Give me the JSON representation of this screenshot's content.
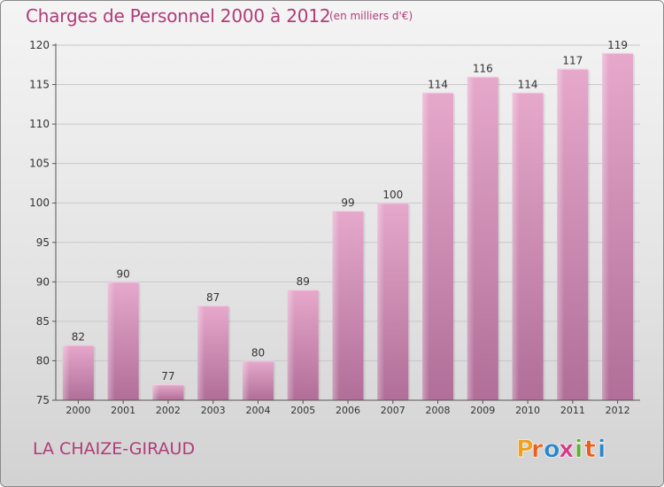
{
  "header": {
    "title": "Charges de Personnel 2000 à 2012",
    "subtitle": "(en milliers d'€)"
  },
  "footer": {
    "commune": "LA CHAIZE-GIRAUD",
    "logo_text": "Proxiti",
    "logo_colors": [
      "#f0a020",
      "#e8601c",
      "#2a86c8",
      "#d43a8c",
      "#5fb030",
      "#e8601c",
      "#2a86c8"
    ]
  },
  "chart_data": {
    "type": "bar",
    "title": "Charges de Personnel 2000 à 2012",
    "subtitle": "(en milliers d'€)",
    "categories": [
      "2000",
      "2001",
      "2002",
      "2003",
      "2004",
      "2005",
      "2006",
      "2007",
      "2008",
      "2009",
      "2010",
      "2011",
      "2012"
    ],
    "values": [
      82,
      90,
      77,
      87,
      80,
      89,
      99,
      100,
      114,
      116,
      114,
      117,
      119
    ],
    "ylim": [
      75,
      120
    ],
    "yticks": [
      75,
      80,
      85,
      90,
      95,
      100,
      105,
      110,
      115,
      120
    ],
    "grid": true,
    "bar_color": "#d990b9"
  }
}
